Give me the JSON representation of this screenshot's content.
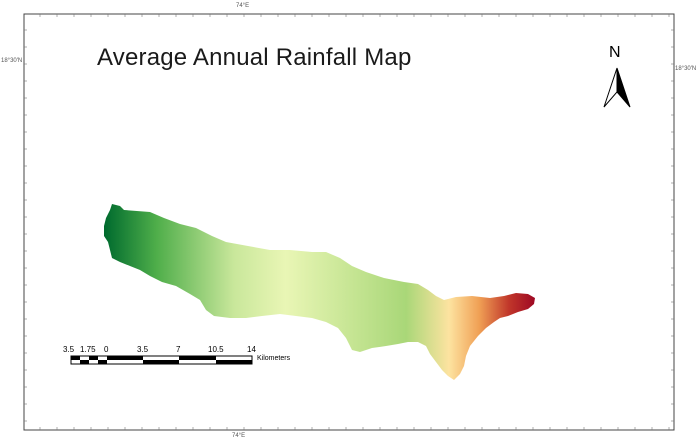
{
  "map": {
    "title": "Average Annual Rainfall Map",
    "north_arrow": {
      "label": "N",
      "icon": "north-arrow-icon"
    },
    "coordinates": {
      "lon_top": "74°E",
      "lon_bottom": "74°E",
      "lat_left": "18°30'N",
      "lat_right": "18°30'N"
    },
    "scale_bar": {
      "labels": [
        "3.5",
        "1.75",
        "0",
        "3.5",
        "7",
        "10.5",
        "14"
      ],
      "unit": "Kilometers"
    },
    "ramp_colors": [
      "#006b2e",
      "#4fae4a",
      "#c9e79b",
      "#e9f6b5",
      "#a9d778",
      "#fde3a0",
      "#f0a055",
      "#c0362a",
      "#9e0823"
    ]
  }
}
